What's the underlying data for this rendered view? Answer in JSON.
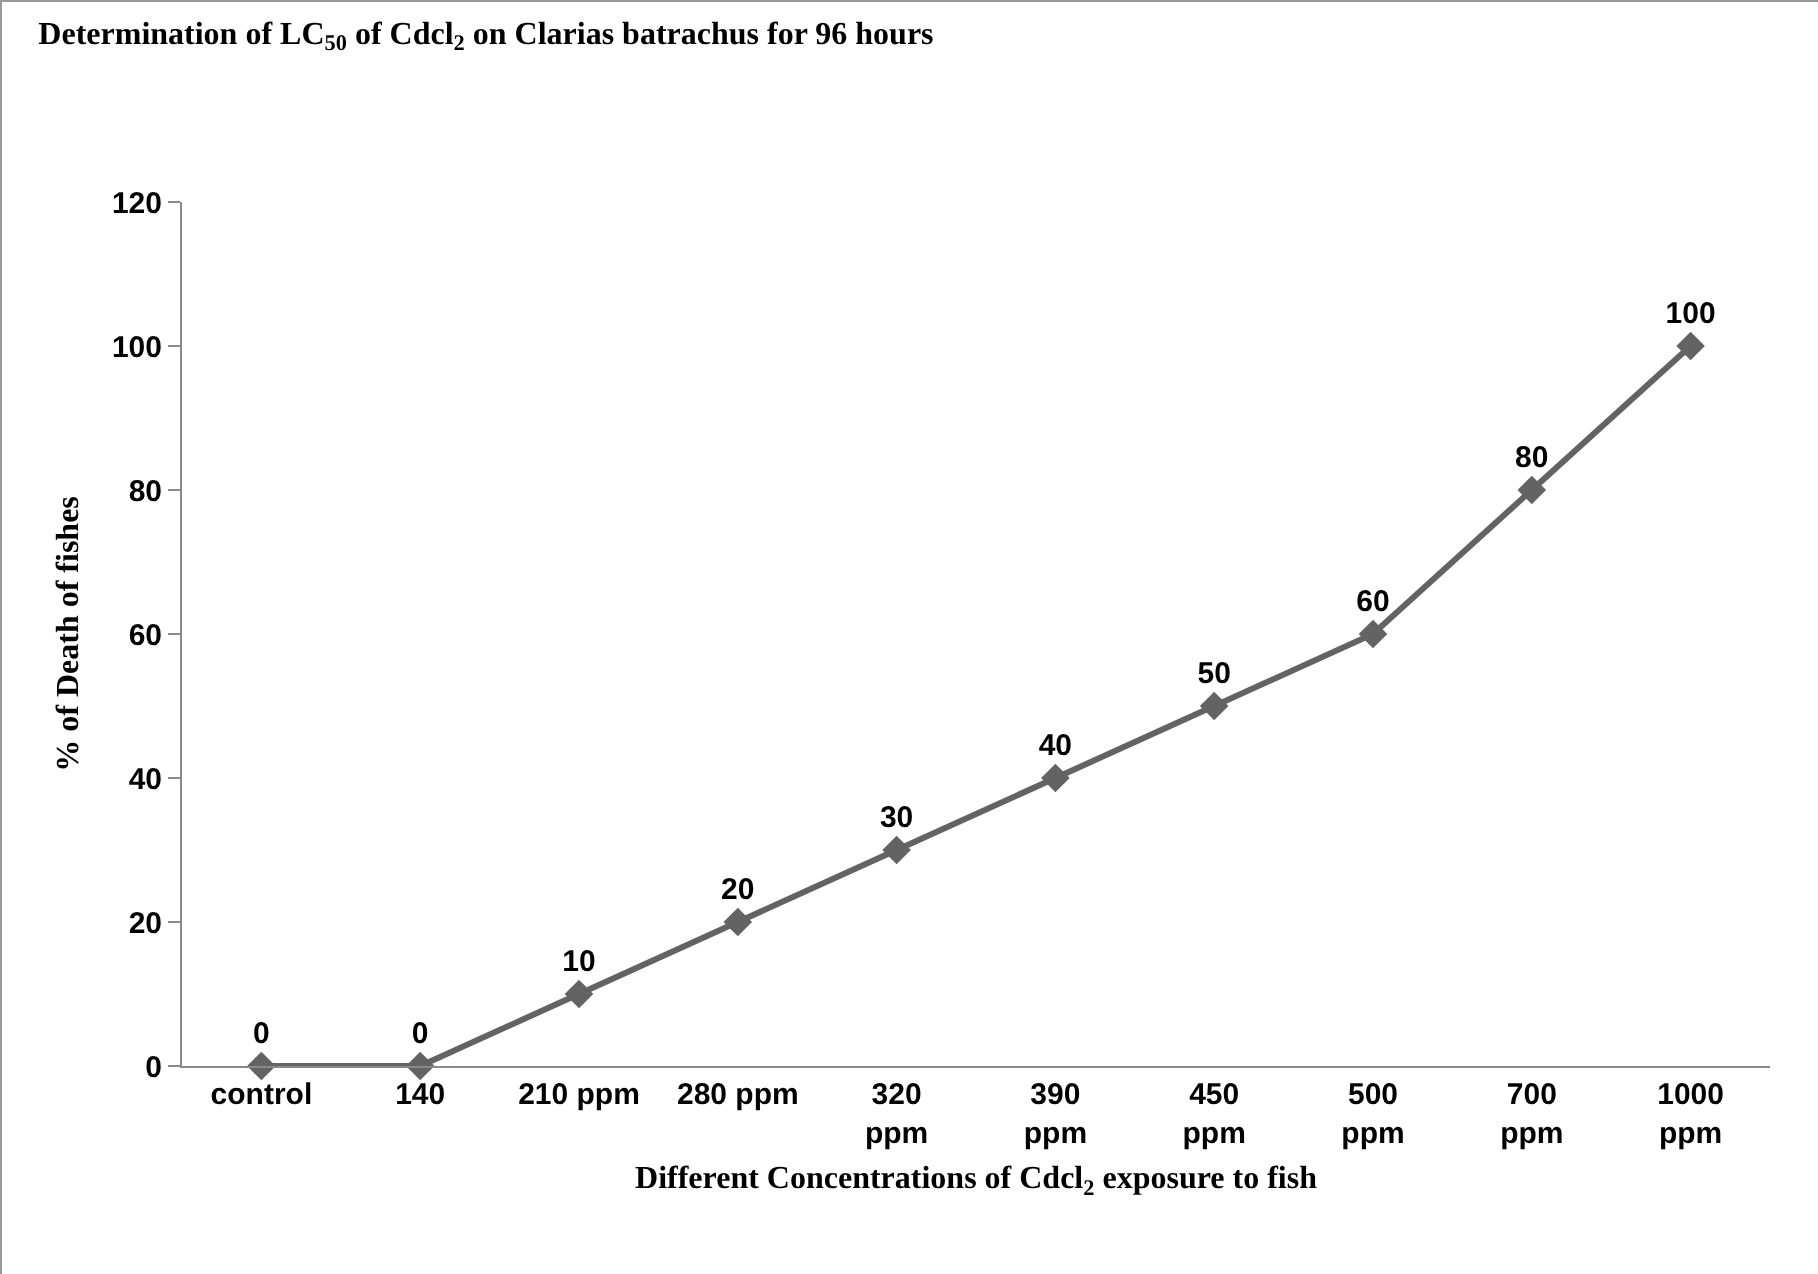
{
  "chart_data": {
    "type": "line",
    "title": "Determination of LC$_{50}$ of Cdcl$_{2}$ on Clarias batrachus for 96 hours",
    "xlabel": "Different Concentrations of Cdcl$_{2}$ exposure to fish",
    "ylabel": "% of Death of fishes",
    "categories": [
      "control",
      "140",
      "210 ppm",
      "280 ppm",
      "320 ppm",
      "390 ppm",
      "450 ppm",
      "500 ppm",
      "700 ppm",
      "1000 ppm"
    ],
    "series": [
      {
        "color": "#636363",
        "values": [
          0,
          0,
          10,
          20,
          30,
          40,
          50,
          60,
          80,
          100
        ]
      }
    ],
    "ylim": [
      0,
      120
    ],
    "yticks": [
      0,
      20,
      40,
      60,
      80,
      100,
      120
    ],
    "grid": false,
    "marker": "diamond",
    "line_style": "solid",
    "data_labels": true
  }
}
